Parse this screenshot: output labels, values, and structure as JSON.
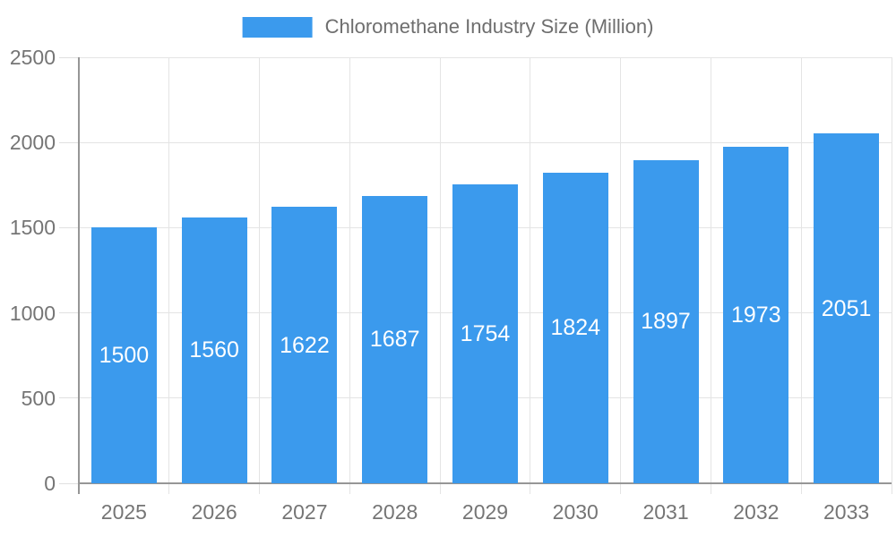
{
  "legend": {
    "label": "Chloromethane Industry Size (Million)"
  },
  "chart_data": {
    "type": "bar",
    "title": "Chloromethane Industry Size (Million)",
    "categories": [
      "2025",
      "2026",
      "2027",
      "2028",
      "2029",
      "2030",
      "2031",
      "2032",
      "2033"
    ],
    "values": [
      1500,
      1560,
      1622,
      1687,
      1754,
      1824,
      1897,
      1973,
      2051
    ],
    "xlabel": "",
    "ylabel": "",
    "ylim": [
      0,
      2500
    ],
    "yticks": [
      0,
      500,
      1000,
      1500,
      2000,
      2500
    ],
    "grid": true,
    "legend_position": "top",
    "bar_color": "#3b9aed",
    "bar_label_color": "#ffffff",
    "axis_text_color": "#757575",
    "grid_color": "#e4e4e4",
    "axis_line_color": "#969696"
  }
}
